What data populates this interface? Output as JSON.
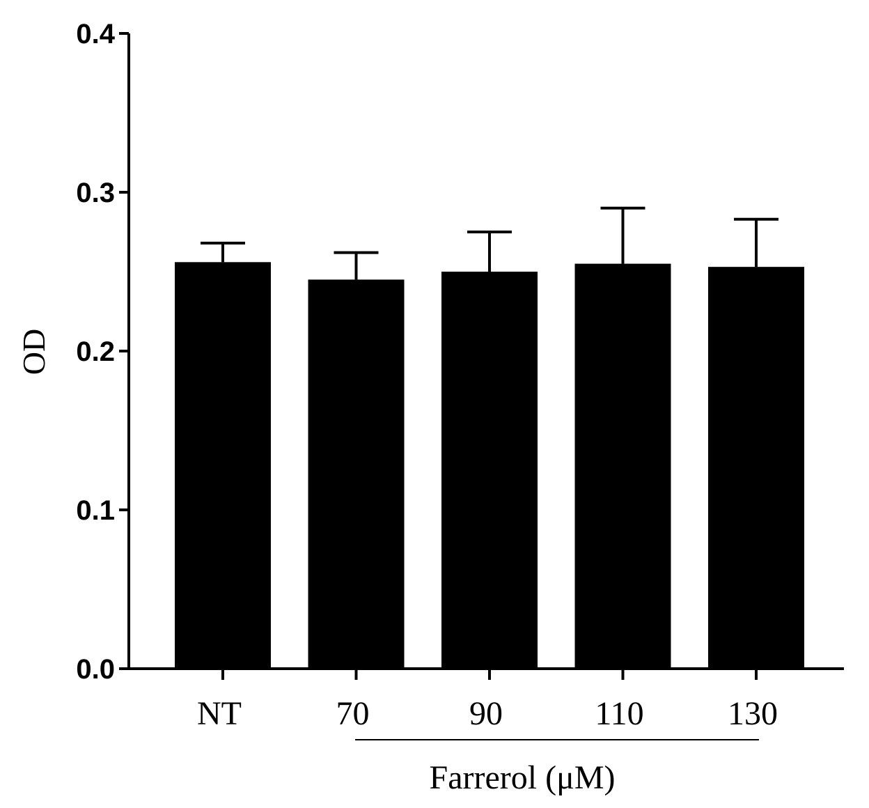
{
  "chart_data": {
    "type": "bar",
    "title": "",
    "xlabel": "",
    "ylabel": "OD",
    "ylim": [
      0,
      0.4
    ],
    "yticks": [
      "0.0",
      "0.1",
      "0.2",
      "0.3",
      "0.4"
    ],
    "categories": [
      "NT",
      "70",
      "90",
      "110",
      "130"
    ],
    "values": [
      0.256,
      0.245,
      0.25,
      0.255,
      0.253
    ],
    "errors": [
      0.012,
      0.017,
      0.025,
      0.035,
      0.03
    ],
    "group_label": "Farrerol (μM)",
    "bar_color": "#000000",
    "grid": false,
    "legend": "none"
  }
}
